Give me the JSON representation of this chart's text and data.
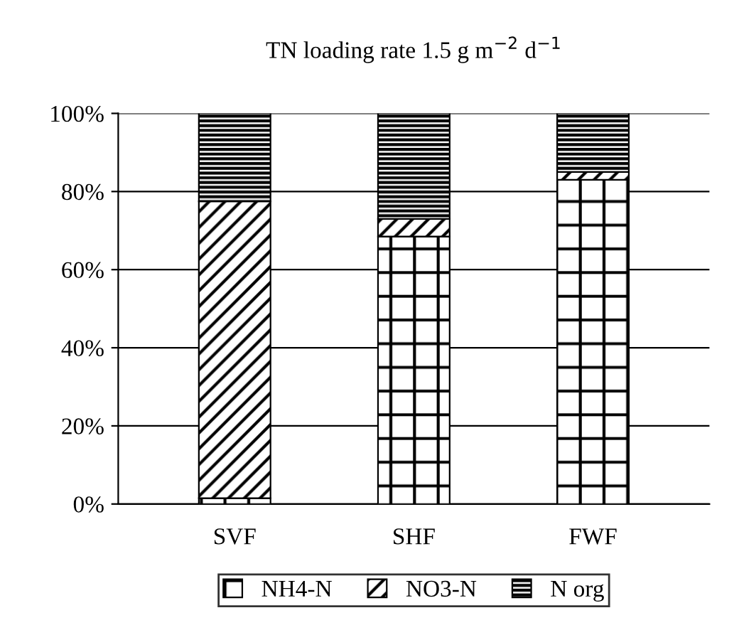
{
  "chart_data": {
    "type": "bar",
    "stacked": true,
    "title": "TN loading rate 1.5 g m$^{−2}$ d$^{−1}$",
    "categories": [
      "SVF",
      "SHF",
      "FWF"
    ],
    "series": [
      {
        "name": "NH4-N",
        "color": "#000000",
        "values": [
          1.5,
          68.5,
          83
        ]
      },
      {
        "name": "NO3-N",
        "color": "#000000",
        "values": [
          76,
          4.5,
          2
        ]
      },
      {
        "name": "N org",
        "color": "#000000",
        "values": [
          22.5,
          27,
          15
        ]
      }
    ],
    "ylim": [
      0,
      100
    ],
    "yticks": [
      {
        "value": 0,
        "label": "0%"
      },
      {
        "value": 20,
        "label": "20%"
      },
      {
        "value": 40,
        "label": "40%"
      },
      {
        "value": 60,
        "label": "60%"
      },
      {
        "value": 80,
        "label": "80%"
      },
      {
        "value": 100,
        "label": "100%"
      }
    ],
    "grid": "y",
    "legend": "bottom"
  }
}
